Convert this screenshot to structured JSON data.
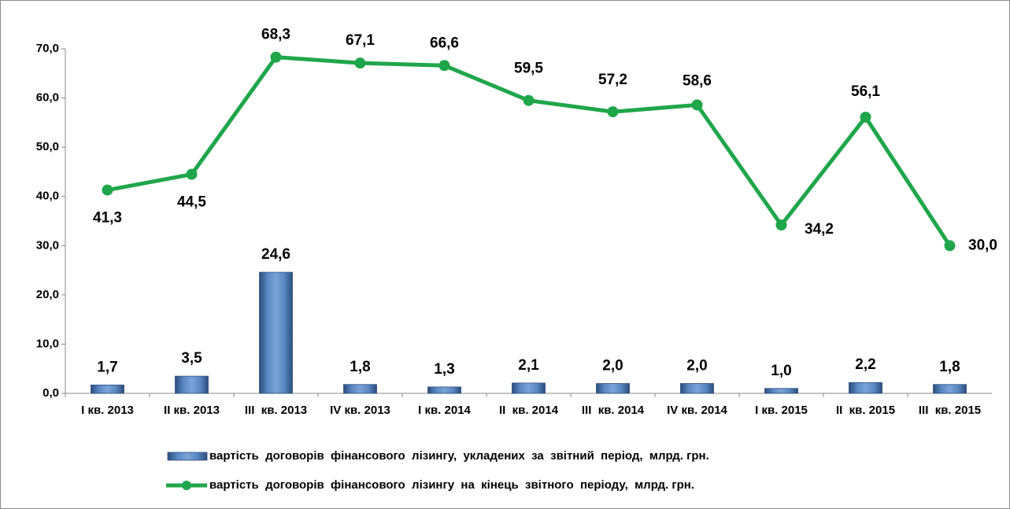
{
  "chart_data": {
    "type": "bar",
    "categories": [
      "I кв. 2013",
      "II кв. 2013",
      "III  кв. 2013",
      "IV кв. 2013",
      "I кв. 2014",
      "II  кв. 2014",
      "III  кв. 2014",
      "IV кв. 2014",
      "I кв. 2015",
      "II  кв. 2015",
      "III  кв. 2015"
    ],
    "series": [
      {
        "name": "вартість  договорів  фінансового  лізингу,  укладених  за  звітний  період,  млрд. грн.",
        "type": "bar",
        "color": "#4f81bd",
        "values": [
          1.7,
          3.5,
          24.6,
          1.8,
          1.3,
          2.1,
          2.0,
          2.0,
          1.0,
          2.2,
          1.8
        ],
        "value_labels": [
          "1,7",
          "3,5",
          "24,6",
          "1,8",
          "1,3",
          "2,1",
          "2,0",
          "2,0",
          "1,0",
          "2,2",
          "1,8"
        ]
      },
      {
        "name": "вартість  договорів  фінансового  лізингу  на  кінець  звітного  періоду,  млрд. грн.",
        "type": "line",
        "color": "#1fa64a",
        "values": [
          41.3,
          44.5,
          68.3,
          67.1,
          66.6,
          59.5,
          57.2,
          58.6,
          34.2,
          56.1,
          30.0
        ],
        "value_labels": [
          "41,3",
          "44,5",
          "68,3",
          "67,1",
          "66,6",
          "59,5",
          "57,2",
          "58,6",
          "34,2",
          "56,1",
          "30,0"
        ]
      }
    ],
    "ylim": [
      0,
      70
    ],
    "yticks": [
      {
        "value": 0,
        "label": "0,0"
      },
      {
        "value": 10,
        "label": "10,0"
      },
      {
        "value": 20,
        "label": "20,0"
      },
      {
        "value": 30,
        "label": "30,0"
      },
      {
        "value": 40,
        "label": "40,0"
      },
      {
        "value": 50,
        "label": "50,0"
      },
      {
        "value": 60,
        "label": "60,0"
      },
      {
        "value": 70,
        "label": "70,0"
      }
    ],
    "grid": false,
    "legend": "bottom"
  }
}
